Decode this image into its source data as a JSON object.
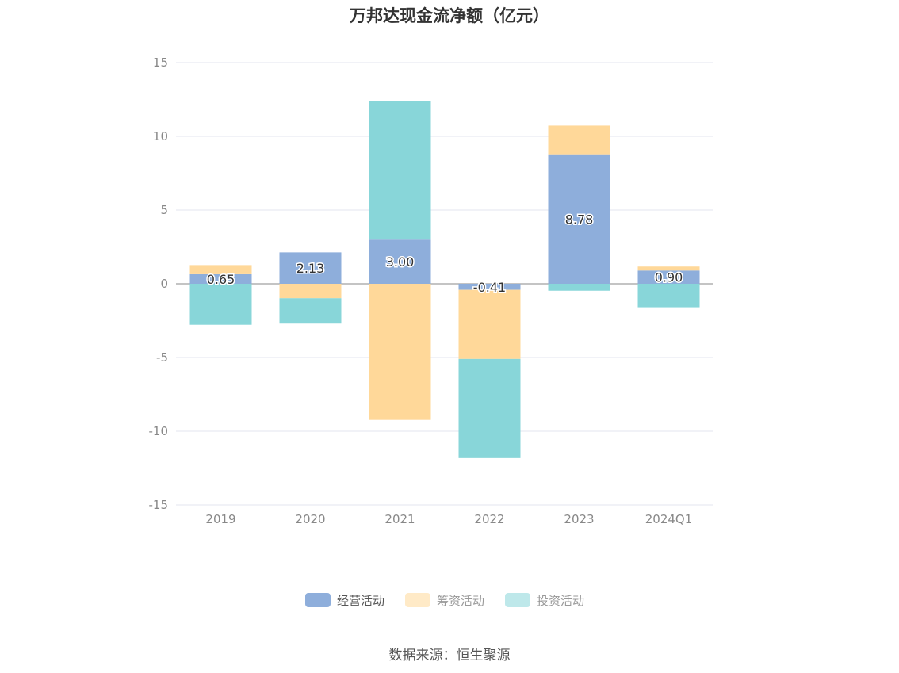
{
  "chart_data": {
    "type": "bar",
    "stacked": true,
    "title": "万邦达现金流净额（亿元）",
    "source": "数据来源：恒生聚源",
    "categories": [
      "2019",
      "2020",
      "2021",
      "2022",
      "2023",
      "2024Q1"
    ],
    "ylim": [
      -15,
      15
    ],
    "yticks": [
      15,
      10,
      5,
      0,
      -5,
      -10,
      -15
    ],
    "grid": true,
    "legend_position": "bottom",
    "series": [
      {
        "name": "经营活动",
        "color": "#8eaedb",
        "values": [
          0.65,
          2.13,
          3.0,
          -0.41,
          8.78,
          0.9
        ],
        "labels": [
          "0.65",
          "2.13",
          "3.00",
          "-0.41",
          "8.78",
          "0.90"
        ]
      },
      {
        "name": "筹资活动",
        "color": "#ffd899",
        "values": [
          0.62,
          -0.98,
          -9.23,
          -4.69,
          1.95,
          0.27
        ]
      },
      {
        "name": "投资活动",
        "color": "#88d6d9",
        "values": [
          -2.78,
          -1.72,
          9.37,
          -6.72,
          -0.47,
          -1.59
        ]
      }
    ]
  }
}
